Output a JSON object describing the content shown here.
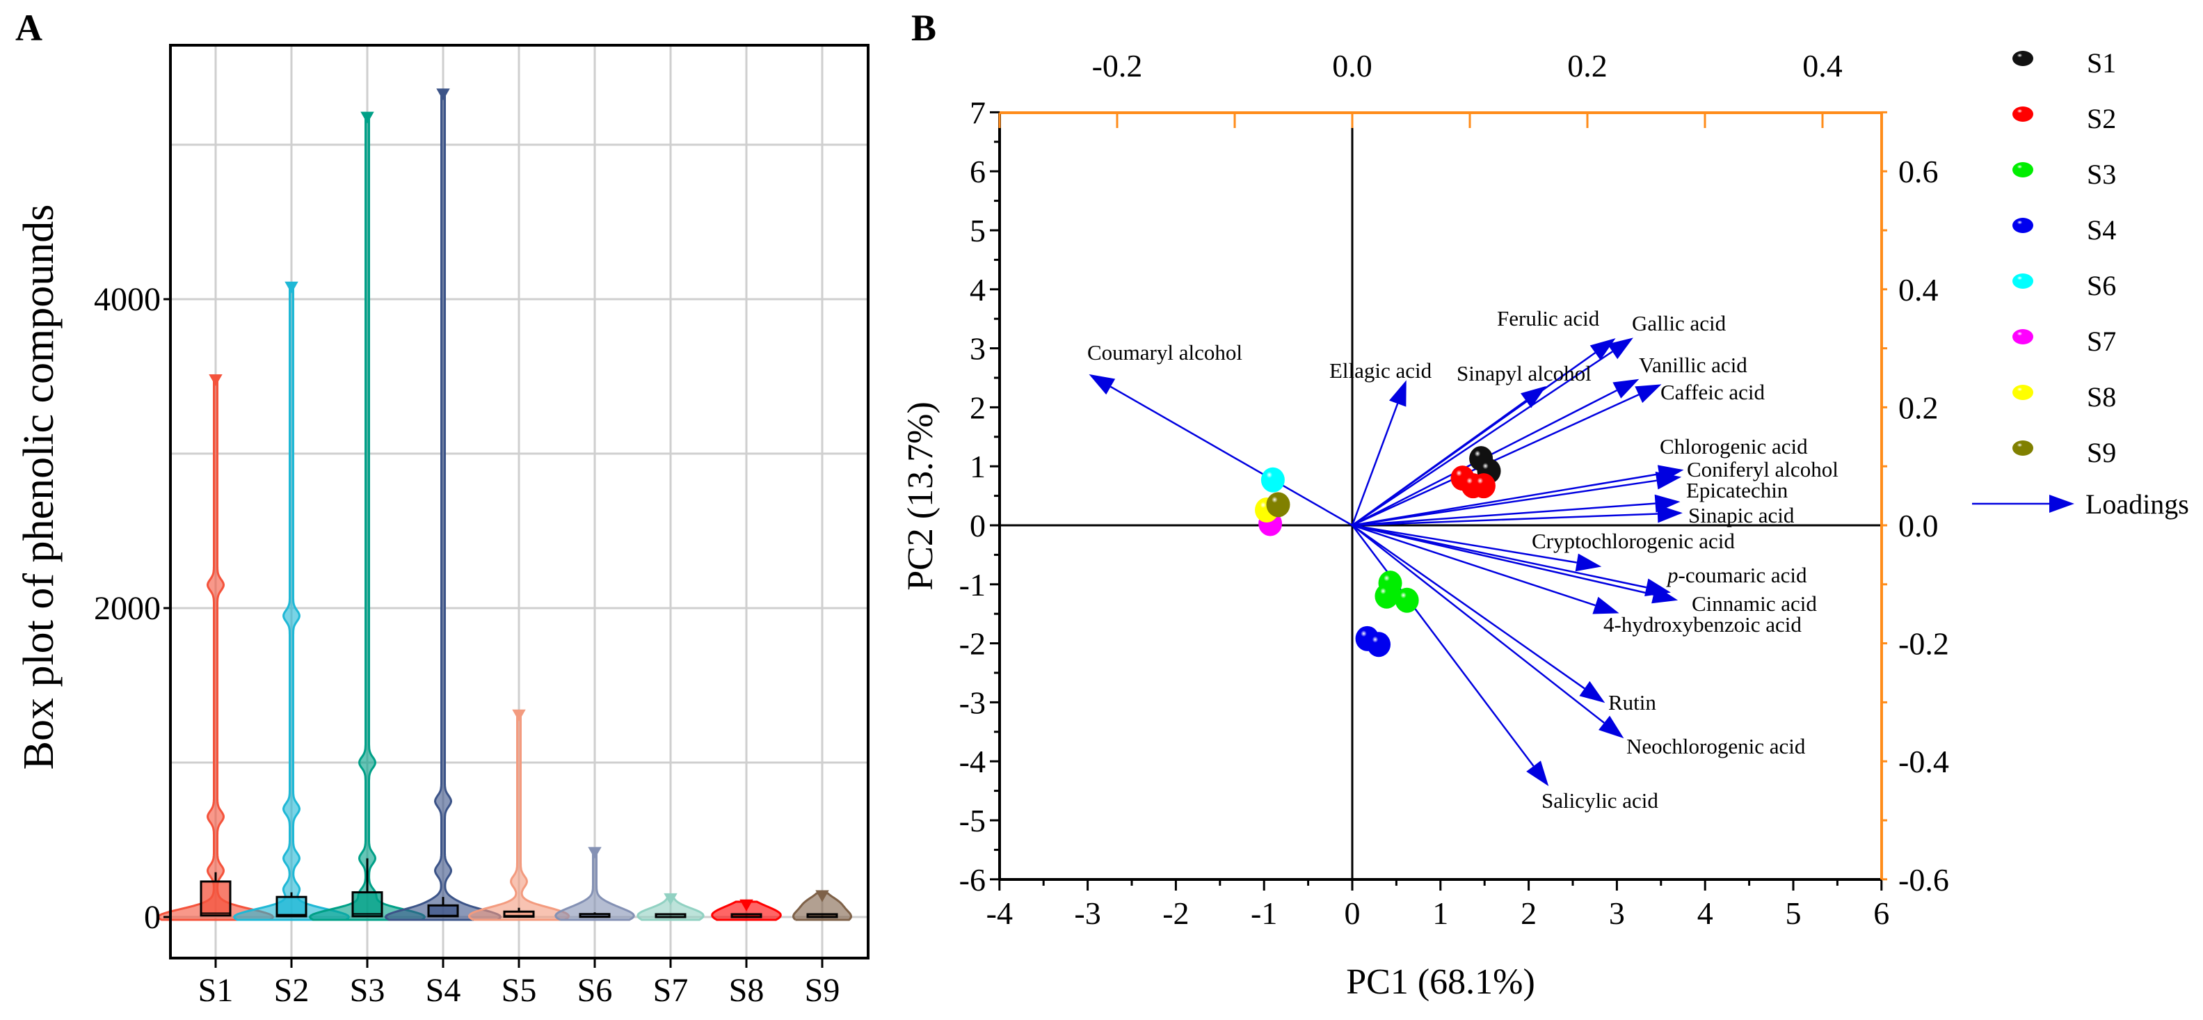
{
  "panel_labels": {
    "a": "A",
    "b": "B"
  },
  "chart_data": [
    {
      "type": "violin",
      "title": "",
      "xlabel": "",
      "ylabel": "Box plot of phenolic compounds",
      "categories": [
        "S1",
        "S2",
        "S3",
        "S4",
        "S5",
        "S6",
        "S7",
        "S8",
        "S9"
      ],
      "yticks": [
        0,
        2000,
        4000
      ],
      "ytick_labels": [
        "0",
        "2000",
        "4000"
      ],
      "ygrid": [
        0,
        1000,
        2000,
        3000,
        4000,
        5000
      ],
      "ylim": [
        -260,
        5650
      ],
      "grid": true,
      "series": [
        {
          "name": "S1",
          "color": "#F4533C",
          "max": 3500,
          "modes": [
            2150,
            650,
            300
          ],
          "q1": 10,
          "median": 25,
          "q3": 230,
          "whisker_high": 290
        },
        {
          "name": "S2",
          "color": "#1FB8D6",
          "max": 4100,
          "modes": [
            1950,
            700,
            380,
            180
          ],
          "q1": 5,
          "median": 15,
          "q3": 130,
          "whisker_high": 160
        },
        {
          "name": "S3",
          "color": "#00A087",
          "max": 5200,
          "modes": [
            1000,
            380,
            150
          ],
          "q1": 5,
          "median": 20,
          "q3": 160,
          "whisker_high": 380
        },
        {
          "name": "S4",
          "color": "#3C5488",
          "max": 5350,
          "modes": [
            750,
            300,
            100
          ],
          "q1": 5,
          "median": 10,
          "q3": 75,
          "whisker_high": 130
        },
        {
          "name": "S5",
          "color": "#F39B7F",
          "max": 1330,
          "modes": [
            230,
            50
          ],
          "q1": 2,
          "median": 8,
          "q3": 35,
          "whisker_high": 60
        },
        {
          "name": "S6",
          "color": "#8491B4",
          "max": 440,
          "modes": [
            80,
            20
          ],
          "q1": 1,
          "median": 4,
          "q3": 15,
          "whisker_high": 30
        },
        {
          "name": "S7",
          "color": "#91D1C2",
          "max": 140,
          "modes": [
            30
          ],
          "q1": 0,
          "median": 2,
          "q3": 5,
          "whisker_high": 10
        },
        {
          "name": "S8",
          "color": "#FF0000",
          "max": 100,
          "modes": [
            70,
            20
          ],
          "q1": 0,
          "median": 2,
          "q3": 5,
          "whisker_high": 10
        },
        {
          "name": "S9",
          "color": "#7E6148",
          "max": 160,
          "modes": [
            110,
            80
          ],
          "q1": 0,
          "median": 2,
          "q3": 5,
          "whisker_high": 10
        }
      ]
    },
    {
      "type": "scatter",
      "title": "",
      "xlabel": "PC1 (68.1%)",
      "ylabel": "PC2 (13.7%)",
      "xlim": [
        -4,
        6
      ],
      "ylim": [
        -6,
        7
      ],
      "xticks": [
        -4,
        -3,
        -2,
        -1,
        0,
        1,
        2,
        3,
        4,
        5,
        6
      ],
      "xtick_labels": [
        "-4",
        "-3",
        "-2",
        "-1",
        "0",
        "1",
        "2",
        "3",
        "4",
        "5",
        "6"
      ],
      "yticks": [
        7,
        6,
        5,
        4,
        3,
        2,
        1,
        0,
        -1,
        -2,
        -3,
        -4,
        -5,
        -6
      ],
      "ytick_labels": [
        "7",
        "6",
        "5",
        "4",
        "3",
        "2",
        "1",
        "0",
        "-1",
        "-2",
        "-3",
        "-4",
        "-5",
        "-6"
      ],
      "top_axis": {
        "lim": [
          -0.3,
          0.45
        ],
        "ticks": [
          -0.2,
          0.0,
          0.2,
          0.4
        ],
        "tick_labels": [
          "-0.2",
          "0.0",
          "0.2",
          "0.4"
        ],
        "color": "#FF8C1A"
      },
      "right_axis": {
        "lim": [
          -0.6,
          0.7
        ],
        "ticks": [
          0.6,
          0.4,
          0.2,
          0.0,
          -0.2,
          -0.4,
          -0.6
        ],
        "tick_labels": [
          "0.6",
          "0.4",
          "0.2",
          "0.0",
          "-0.2",
          "-0.4",
          "-0.6"
        ],
        "color": "#FF8C1A"
      },
      "grid": false,
      "legend_position": "right",
      "loadings_label": "Loadings",
      "loading_color": "#0000E0",
      "scores": [
        {
          "group": "S1",
          "color": "#111111",
          "points": [
            [
              1.46,
              1.13
            ],
            [
              1.55,
              0.92
            ]
          ]
        },
        {
          "group": "S2",
          "color": "#FF0000",
          "points": [
            [
              1.25,
              0.8
            ],
            [
              1.37,
              0.67
            ],
            [
              1.49,
              0.67
            ]
          ]
        },
        {
          "group": "S3",
          "color": "#00EE00",
          "points": [
            [
              0.43,
              -0.98
            ],
            [
              0.62,
              -1.27
            ],
            [
              0.39,
              -1.2
            ]
          ]
        },
        {
          "group": "S4",
          "color": "#0000EE",
          "points": [
            [
              0.17,
              -1.92
            ],
            [
              0.3,
              -2.02
            ]
          ]
        },
        {
          "group": "S6",
          "color": "#00FFFF",
          "points": [
            [
              -0.9,
              0.77
            ]
          ]
        },
        {
          "group": "S7",
          "color": "#FF00FF",
          "points": [
            [
              -0.93,
              0.03
            ]
          ]
        },
        {
          "group": "S8",
          "color": "#FFFF00",
          "points": [
            [
              -0.97,
              0.26
            ]
          ]
        },
        {
          "group": "S9",
          "color": "#808000",
          "points": [
            [
              -0.84,
              0.35
            ]
          ]
        }
      ],
      "loadings": [
        {
          "name": "Coumaryl alcohol",
          "x": -0.224,
          "y": 0.256
        },
        {
          "name": "Ellagic acid",
          "x": 0.046,
          "y": 0.246
        },
        {
          "name": "Ferulic acid",
          "x": 0.224,
          "y": 0.317
        },
        {
          "name": "Gallic acid",
          "x": 0.239,
          "y": 0.318
        },
        {
          "name": "Sinapyl alcohol",
          "x": 0.165,
          "y": 0.236
        },
        {
          "name": "Vanillic acid",
          "x": 0.244,
          "y": 0.248
        },
        {
          "name": "Caffeic acid",
          "x": 0.263,
          "y": 0.239
        },
        {
          "name": "Chlorogenic acid",
          "x": 0.282,
          "y": 0.094
        },
        {
          "name": "Coniferyl alcohol",
          "x": 0.28,
          "y": 0.082
        },
        {
          "name": "Epicatechin",
          "x": 0.279,
          "y": 0.04
        },
        {
          "name": "Sinapic acid",
          "x": 0.281,
          "y": 0.021
        },
        {
          "name": "Cryptochlorogenic acid",
          "x": 0.212,
          "y": -0.07
        },
        {
          "name": "p-coumaric acid",
          "x": 0.271,
          "y": -0.114
        },
        {
          "name": "Cinnamic acid",
          "x": 0.277,
          "y": -0.127
        },
        {
          "name": "4-hydroxybenzoic acid",
          "x": 0.227,
          "y": -0.149
        },
        {
          "name": "Rutin",
          "x": 0.215,
          "y": -0.301
        },
        {
          "name": "Neochlorogenic acid",
          "x": 0.231,
          "y": -0.361
        },
        {
          "name": "Salicylic acid",
          "x": 0.167,
          "y": -0.442
        }
      ]
    }
  ]
}
